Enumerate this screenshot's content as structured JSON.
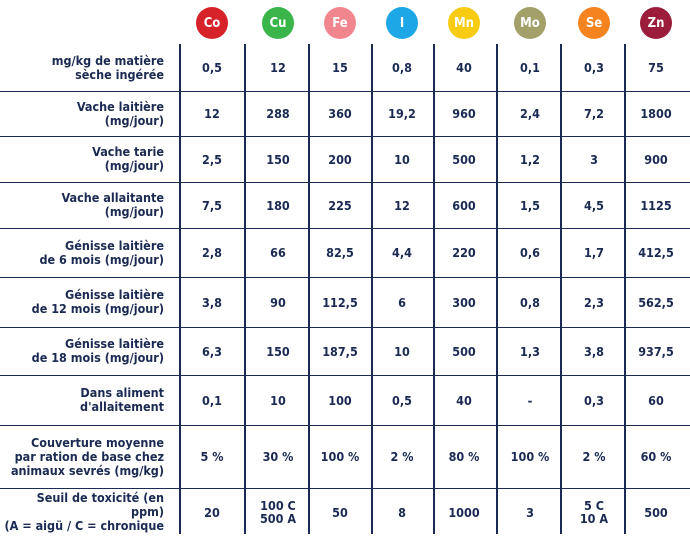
{
  "header": {
    "elements": [
      {
        "symbol": "Co",
        "color": "#d6232a"
      },
      {
        "symbol": "Cu",
        "color": "#3ab54a"
      },
      {
        "symbol": "Fe",
        "color": "#f1868f"
      },
      {
        "symbol": "I",
        "color": "#1da7e6"
      },
      {
        "symbol": "Mn",
        "color": "#f7cc12"
      },
      {
        "symbol": "Mo",
        "color": "#a3a06a"
      },
      {
        "symbol": "Se",
        "color": "#f58320"
      },
      {
        "symbol": "Zn",
        "color": "#9c1d3b"
      }
    ]
  },
  "rows": [
    {
      "label": [
        "mg/kg de matière",
        "sèche ingérée"
      ],
      "values": [
        [
          "0,5"
        ],
        [
          "12"
        ],
        [
          "15"
        ],
        [
          "0,8"
        ],
        [
          "40"
        ],
        [
          "0,1"
        ],
        [
          "0,3"
        ],
        [
          "75"
        ]
      ]
    },
    {
      "label": [
        "Vache laitière",
        "(mg/jour)"
      ],
      "values": [
        [
          "12"
        ],
        [
          "288"
        ],
        [
          "360"
        ],
        [
          "19,2"
        ],
        [
          "960"
        ],
        [
          "2,4"
        ],
        [
          "7,2"
        ],
        [
          "1800"
        ]
      ]
    },
    {
      "label": [
        "Vache tarie",
        "(mg/jour)"
      ],
      "values": [
        [
          "2,5"
        ],
        [
          "150"
        ],
        [
          "200"
        ],
        [
          "10"
        ],
        [
          "500"
        ],
        [
          "1,2"
        ],
        [
          "3"
        ],
        [
          "900"
        ]
      ]
    },
    {
      "label": [
        "Vache allaitante",
        "(mg/jour)"
      ],
      "values": [
        [
          "7,5"
        ],
        [
          "180"
        ],
        [
          "225"
        ],
        [
          "12"
        ],
        [
          "600"
        ],
        [
          "1,5"
        ],
        [
          "4,5"
        ],
        [
          "1125"
        ]
      ]
    },
    {
      "label": [
        "Génisse laitière",
        "de 6 mois (mg/jour)"
      ],
      "values": [
        [
          "2,8"
        ],
        [
          "66"
        ],
        [
          "82,5"
        ],
        [
          "4,4"
        ],
        [
          "220"
        ],
        [
          "0,6"
        ],
        [
          "1,7"
        ],
        [
          "412,5"
        ]
      ]
    },
    {
      "label": [
        "Génisse laitière",
        "de 12 mois (mg/jour)"
      ],
      "values": [
        [
          "3,8"
        ],
        [
          "90"
        ],
        [
          "112,5"
        ],
        [
          "6"
        ],
        [
          "300"
        ],
        [
          "0,8"
        ],
        [
          "2,3"
        ],
        [
          "562,5"
        ]
      ]
    },
    {
      "label": [
        "Génisse laitière",
        "de 18 mois (mg/jour)"
      ],
      "values": [
        [
          "6,3"
        ],
        [
          "150"
        ],
        [
          "187,5"
        ],
        [
          "10"
        ],
        [
          "500"
        ],
        [
          "1,3"
        ],
        [
          "3,8"
        ],
        [
          "937,5"
        ]
      ]
    },
    {
      "label": [
        "Dans aliment",
        "d'allaitement"
      ],
      "values": [
        [
          "0,1"
        ],
        [
          "10"
        ],
        [
          "100"
        ],
        [
          "0,5"
        ],
        [
          "40"
        ],
        [
          "-"
        ],
        [
          "0,3"
        ],
        [
          "60"
        ]
      ]
    },
    {
      "label": [
        "Couverture moyenne",
        "par ration de base chez",
        "animaux sevrés (mg/kg)"
      ],
      "values": [
        [
          "5 %"
        ],
        [
          "30 %"
        ],
        [
          "100 %"
        ],
        [
          "2 %"
        ],
        [
          "80 %"
        ],
        [
          "100 %"
        ],
        [
          "2 %"
        ],
        [
          "60 %"
        ]
      ]
    },
    {
      "label": [
        "Seuil de toxicité (en ppm)",
        "(A = aigü / C = chronique"
      ],
      "values": [
        [
          "20"
        ],
        [
          "100 C",
          "500 A"
        ],
        [
          "50"
        ],
        [
          "8"
        ],
        [
          "1000"
        ],
        [
          "3"
        ],
        [
          "5 C",
          "10 A"
        ],
        [
          "500"
        ]
      ]
    }
  ]
}
